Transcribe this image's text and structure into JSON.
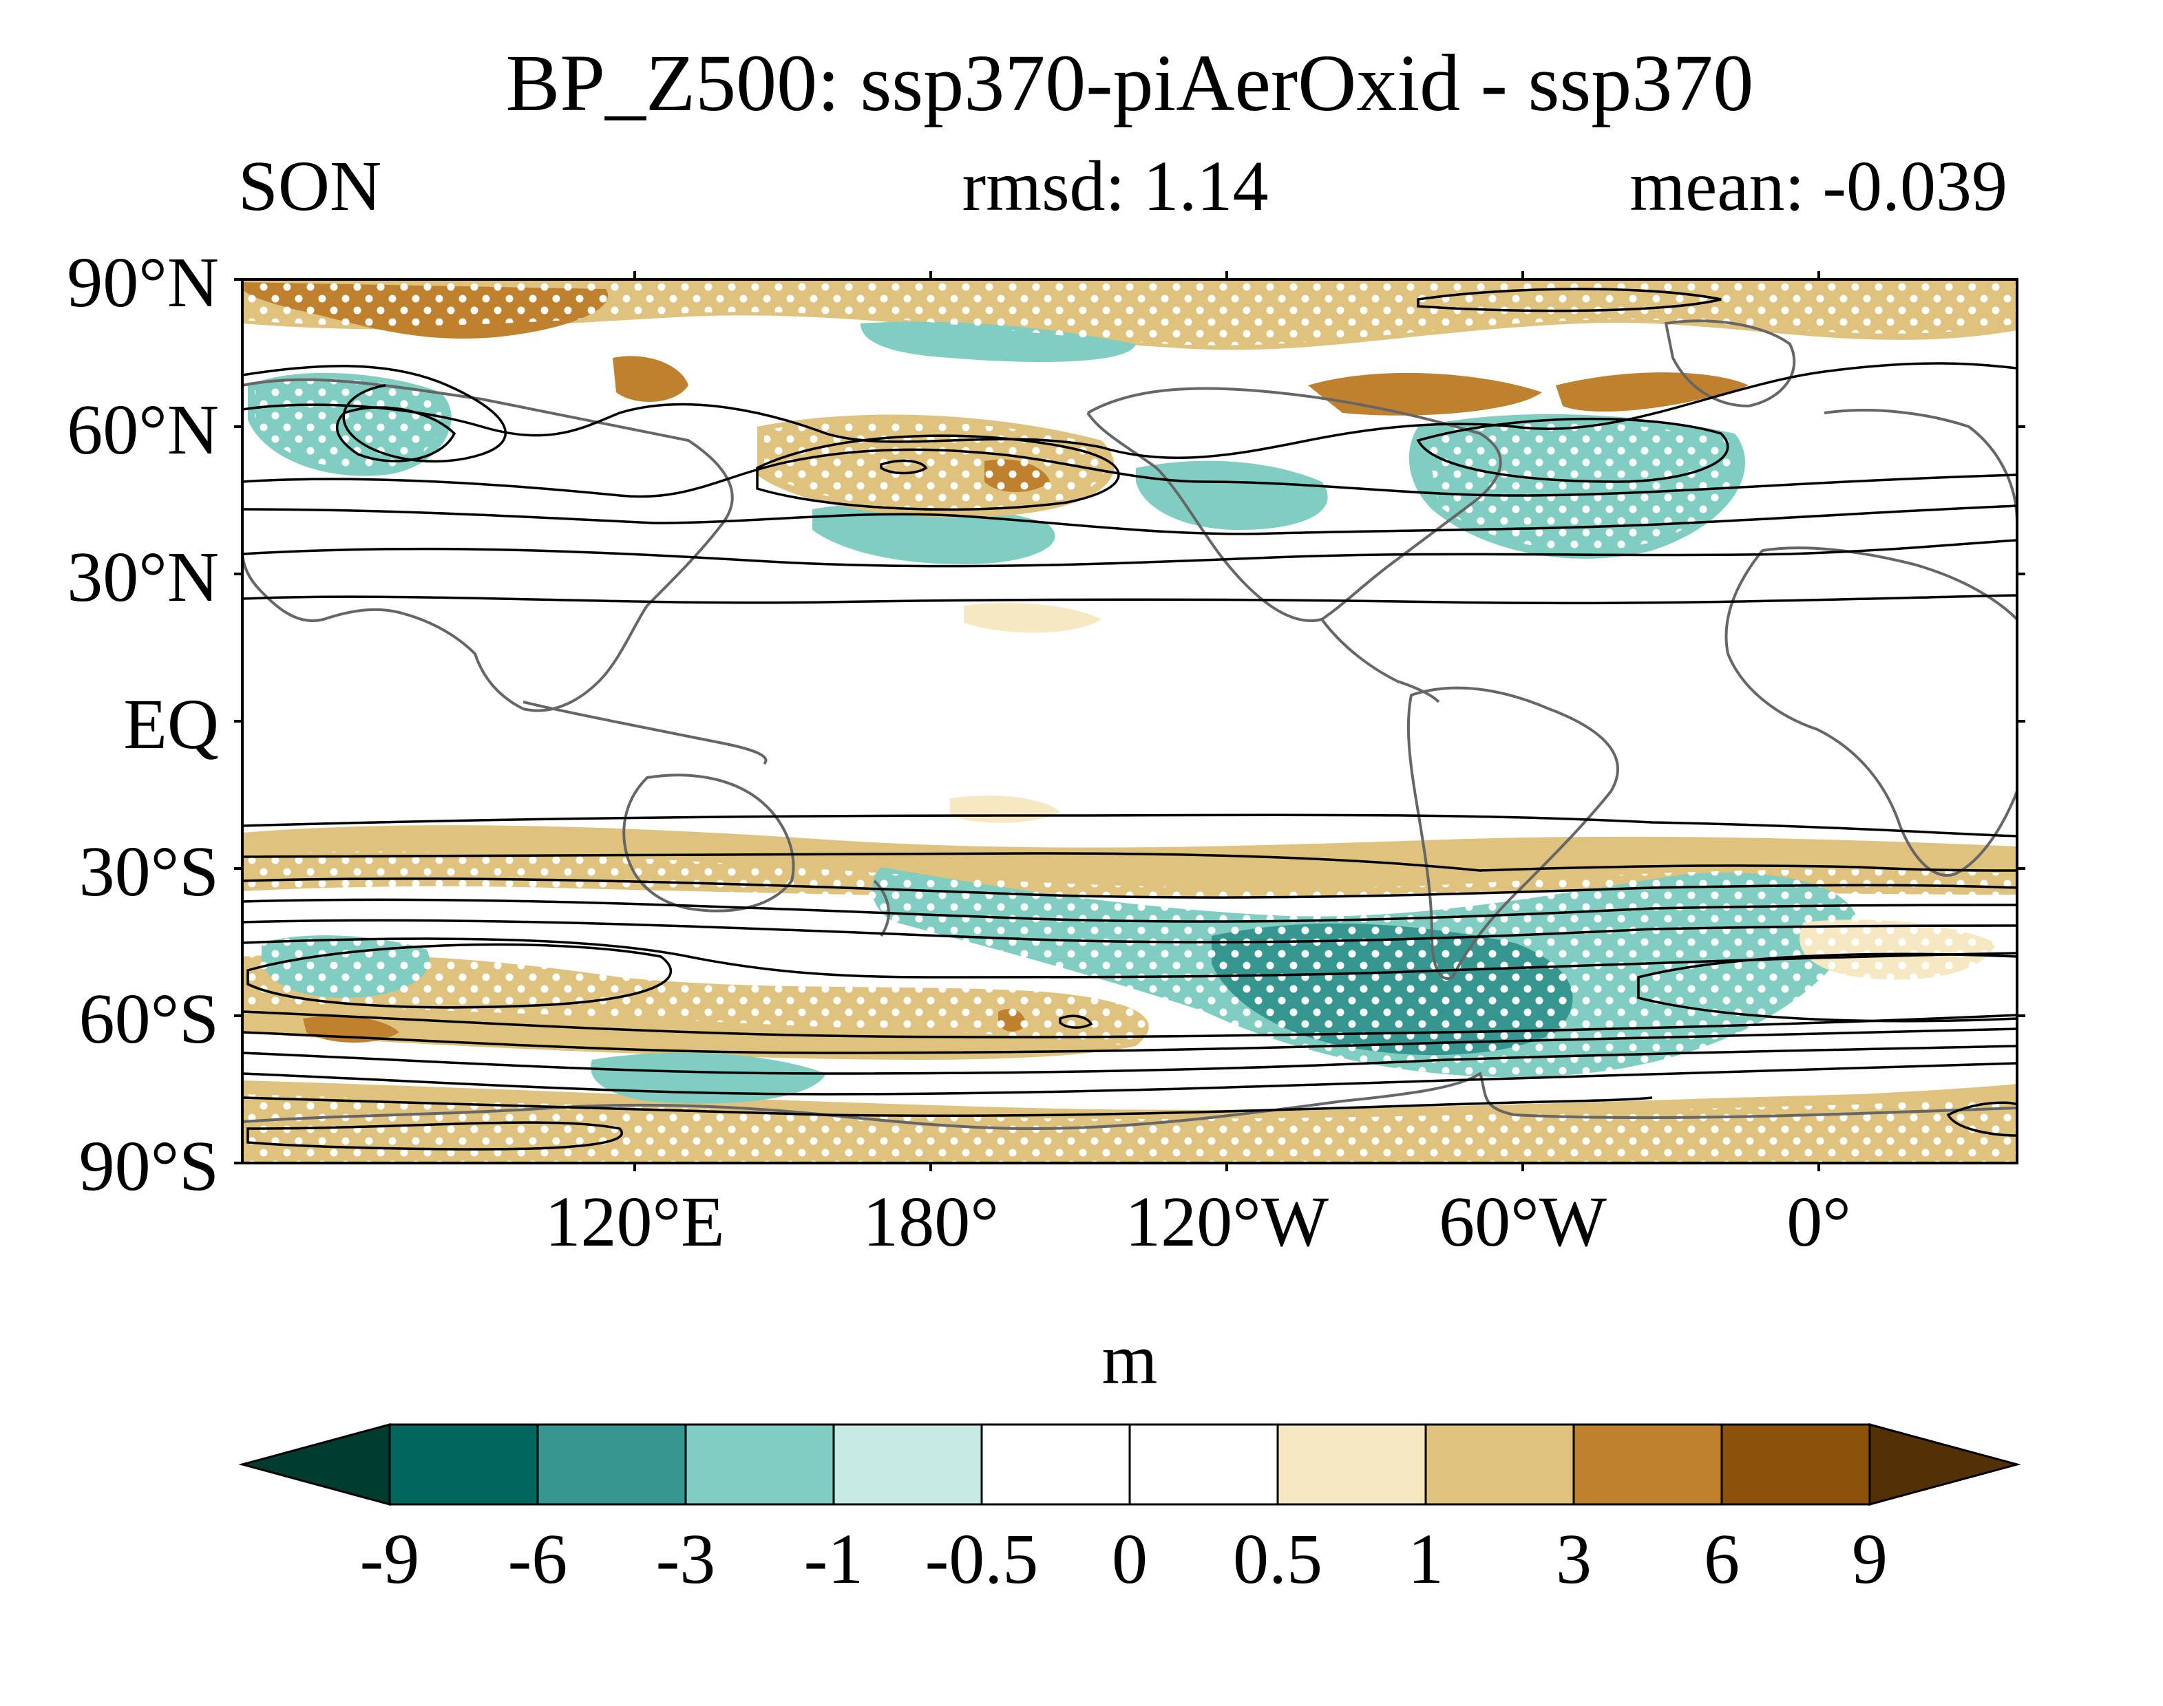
{
  "title": "BP_Z500: ssp370-piAerOxid - ssp370",
  "season": "SON",
  "rmsd_label": "rmsd: 1.14",
  "mean_label": "mean: -0.039",
  "y_ticks": [
    "90°N",
    "60°N",
    "30°N",
    "EQ",
    "30°S",
    "60°S",
    "90°S"
  ],
  "x_ticks": [
    "120°E",
    "180°",
    "120°W",
    "60°W",
    "0°"
  ],
  "colorbar": {
    "unit": "m",
    "levels": [
      "-9",
      "-6",
      "-3",
      "-1",
      "-0.5",
      "0",
      "0.5",
      "1",
      "3",
      "6",
      "9"
    ],
    "colors": [
      "#003c30",
      "#01665e",
      "#35978f",
      "#80cdc1",
      "#c7eae5",
      "#ffffff",
      "#ffffff",
      "#f6e8c3",
      "#dfc27d",
      "#bf812d",
      "#8c510a",
      "#543005"
    ]
  },
  "map_data": {
    "projection": "cylindrical-equidistant",
    "lon_range": [
      40,
      400
    ],
    "lat_range": [
      -90,
      90
    ],
    "variable": "BP_Z500 difference",
    "stippling": "white dots mark significant regions",
    "contours": "black climatology contours",
    "coastlines": "grey"
  }
}
